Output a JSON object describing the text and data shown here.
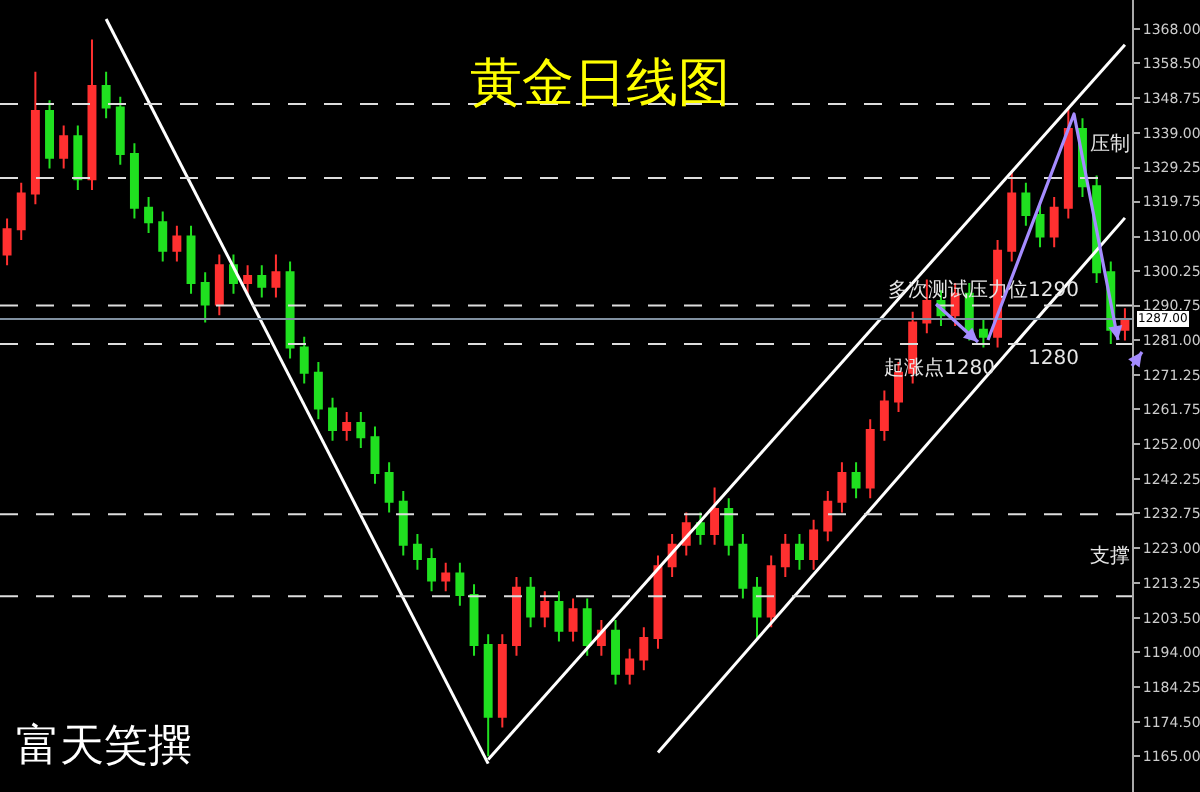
{
  "chart_data": {
    "type": "candlestick",
    "title": "黄金日线图",
    "categories": [
      null,
      null,
      null,
      null,
      null,
      null,
      null,
      null,
      null,
      null,
      null,
      null,
      null,
      null,
      null,
      null,
      null,
      null,
      null,
      null,
      null,
      null,
      null,
      null,
      null,
      null,
      null,
      null,
      null,
      null,
      null,
      null,
      null,
      null,
      null,
      null,
      null,
      null,
      null,
      null,
      null,
      null,
      null,
      null,
      null,
      null,
      null,
      null,
      null,
      null,
      null,
      null,
      null,
      null,
      null,
      null,
      null,
      null,
      null,
      null,
      null,
      null,
      null,
      null,
      null,
      null,
      null,
      null,
      null,
      null,
      null,
      null,
      null,
      null,
      null,
      null,
      null,
      null,
      null,
      null
    ],
    "ohlc": [
      [
        1305,
        1315,
        1302,
        1312
      ],
      [
        1312,
        1325,
        1309,
        1322
      ],
      [
        1322,
        1356,
        1319,
        1345
      ],
      [
        1345,
        1348,
        1329,
        1332
      ],
      [
        1332,
        1341,
        1329,
        1338
      ],
      [
        1338,
        1341,
        1323,
        1326
      ],
      [
        1326,
        1365,
        1323,
        1352
      ],
      [
        1352,
        1356,
        1343,
        1346
      ],
      [
        1346,
        1349,
        1330,
        1333
      ],
      [
        1333,
        1336,
        1315,
        1318
      ],
      [
        1318,
        1321,
        1311,
        1314
      ],
      [
        1314,
        1317,
        1303,
        1306
      ],
      [
        1306,
        1313,
        1303,
        1310
      ],
      [
        1310,
        1313,
        1294,
        1297
      ],
      [
        1297,
        1300,
        1286,
        1291
      ],
      [
        1291,
        1305,
        1288,
        1302
      ],
      [
        1302,
        1305,
        1294,
        1297
      ],
      [
        1297,
        1302,
        1294,
        1299
      ],
      [
        1299,
        1302,
        1293,
        1296
      ],
      [
        1296,
        1305,
        1293,
        1300
      ],
      [
        1300,
        1303,
        1276,
        1279
      ],
      [
        1279,
        1282,
        1269,
        1272
      ],
      [
        1272,
        1275,
        1259,
        1262
      ],
      [
        1262,
        1265,
        1253,
        1256
      ],
      [
        1256,
        1261,
        1253,
        1258
      ],
      [
        1258,
        1261,
        1251,
        1254
      ],
      [
        1254,
        1257,
        1241,
        1244
      ],
      [
        1244,
        1247,
        1233,
        1236
      ],
      [
        1236,
        1239,
        1221,
        1224
      ],
      [
        1224,
        1227,
        1217,
        1220
      ],
      [
        1220,
        1223,
        1211,
        1214
      ],
      [
        1214,
        1219,
        1211,
        1216
      ],
      [
        1216,
        1219,
        1207,
        1210
      ],
      [
        1210,
        1213,
        1193,
        1196
      ],
      [
        1196,
        1199,
        1165,
        1176
      ],
      [
        1176,
        1199,
        1173,
        1196
      ],
      [
        1196,
        1215,
        1193,
        1212
      ],
      [
        1212,
        1215,
        1201,
        1204
      ],
      [
        1204,
        1211,
        1201,
        1208
      ],
      [
        1208,
        1211,
        1197,
        1200
      ],
      [
        1200,
        1209,
        1197,
        1206
      ],
      [
        1206,
        1209,
        1193,
        1196
      ],
      [
        1196,
        1203,
        1193,
        1200
      ],
      [
        1200,
        1203,
        1185,
        1188
      ],
      [
        1188,
        1195,
        1185,
        1192
      ],
      [
        1192,
        1201,
        1189,
        1198
      ],
      [
        1198,
        1221,
        1195,
        1218
      ],
      [
        1218,
        1227,
        1215,
        1224
      ],
      [
        1224,
        1233,
        1221,
        1230
      ],
      [
        1230,
        1233,
        1224,
        1227
      ],
      [
        1227,
        1240,
        1224,
        1234
      ],
      [
        1234,
        1237,
        1221,
        1224
      ],
      [
        1224,
        1227,
        1209,
        1212
      ],
      [
        1212,
        1215,
        1198,
        1204
      ],
      [
        1204,
        1221,
        1201,
        1218
      ],
      [
        1218,
        1227,
        1215,
        1224
      ],
      [
        1224,
        1227,
        1217,
        1220
      ],
      [
        1220,
        1231,
        1217,
        1228
      ],
      [
        1228,
        1239,
        1225,
        1236
      ],
      [
        1236,
        1247,
        1233,
        1244
      ],
      [
        1244,
        1247,
        1237,
        1240
      ],
      [
        1240,
        1259,
        1237,
        1256
      ],
      [
        1256,
        1267,
        1253,
        1264
      ],
      [
        1264,
        1275,
        1261,
        1272
      ],
      [
        1272,
        1289,
        1269,
        1286
      ],
      [
        1286,
        1298,
        1283,
        1292
      ],
      [
        1292,
        1295,
        1285,
        1288
      ],
      [
        1288,
        1297,
        1285,
        1294
      ],
      [
        1294,
        1297,
        1281,
        1284
      ],
      [
        1284,
        1287,
        1279,
        1282
      ],
      [
        1282,
        1309,
        1279,
        1306
      ],
      [
        1306,
        1328,
        1303,
        1322
      ],
      [
        1322,
        1325,
        1313,
        1316
      ],
      [
        1316,
        1319,
        1307,
        1310
      ],
      [
        1310,
        1321,
        1307,
        1318
      ],
      [
        1318,
        1346,
        1315,
        1340
      ],
      [
        1340,
        1343,
        1321,
        1324
      ],
      [
        1324,
        1327,
        1297,
        1300
      ],
      [
        1300,
        1303,
        1280,
        1284
      ],
      [
        1284,
        1290,
        1281,
        1287
      ]
    ],
    "colors": [
      "#ff3030",
      "#ff3030",
      "#ff3030",
      "#20e020",
      "#ff3030",
      "#20e020",
      "#ff3030",
      "#20e020",
      "#20e020",
      "#20e020",
      "#20e020",
      "#20e020",
      "#ff3030",
      "#20e020",
      "#20e020",
      "#ff3030",
      "#20e020",
      "#ff3030",
      "#20e020",
      "#ff3030",
      "#20e020",
      "#20e020",
      "#20e020",
      "#20e020",
      "#ff3030",
      "#20e020",
      "#20e020",
      "#20e020",
      "#20e020",
      "#20e020",
      "#20e020",
      "#ff3030",
      "#20e020",
      "#20e020",
      "#20e020",
      "#ff3030",
      "#ff3030",
      "#20e020",
      "#ff3030",
      "#20e020",
      "#ff3030",
      "#20e020",
      "#ff3030",
      "#20e020",
      "#ff3030",
      "#ff3030",
      "#ff3030",
      "#ff3030",
      "#ff3030",
      "#20e020",
      "#ff3030",
      "#20e020",
      "#20e020",
      "#20e020",
      "#ff3030",
      "#ff3030",
      "#20e020",
      "#ff3030",
      "#ff3030",
      "#ff3030",
      "#20e020",
      "#ff3030",
      "#ff3030",
      "#ff3030",
      "#ff3030",
      "#ff3030",
      "#20e020",
      "#ff3030",
      "#20e020",
      "#20e020",
      "#ff3030",
      "#ff3030",
      "#20e020",
      "#20e020",
      "#ff3030",
      "#ff3030",
      "#20e020",
      "#20e020",
      "#20e020",
      "#ff3030"
    ],
    "series": [
      {
        "type": "line",
        "color": "#ffffff",
        "values": [
          null,
          null,
          null,
          null,
          null,
          null,
          null,
          1370.7,
          null,
          null,
          null,
          null,
          null,
          null,
          null,
          null,
          null,
          null,
          null,
          null,
          null,
          null,
          null,
          null,
          null,
          null,
          null,
          null,
          null,
          null,
          null,
          null,
          null,
          null,
          1162.9,
          null,
          null,
          null,
          null,
          null,
          null,
          null,
          null,
          null,
          null,
          null,
          null,
          null,
          null,
          null,
          null,
          null,
          null,
          null,
          null,
          null,
          null,
          null,
          null,
          null,
          null,
          null,
          null,
          null,
          null,
          null,
          null,
          null,
          null,
          null,
          null,
          null,
          null,
          null,
          null,
          null,
          null,
          null,
          null,
          null
        ]
      },
      {
        "type": "line",
        "color": "#ffffff",
        "values": [
          null,
          null,
          null,
          null,
          null,
          null,
          null,
          null,
          null,
          null,
          null,
          null,
          null,
          null,
          null,
          null,
          null,
          null,
          null,
          null,
          null,
          null,
          null,
          null,
          null,
          null,
          null,
          null,
          null,
          null,
          null,
          null,
          null,
          null,
          1164.1,
          null,
          null,
          null,
          null,
          null,
          null,
          null,
          null,
          null,
          null,
          null,
          null,
          null,
          null,
          null,
          null,
          null,
          null,
          null,
          null,
          null,
          null,
          null,
          null,
          null,
          null,
          null,
          null,
          null,
          null,
          null,
          null,
          null,
          null,
          null,
          null,
          null,
          null,
          null,
          null,
          null,
          null,
          null,
          null,
          1363.5
        ]
      },
      {
        "type": "line",
        "color": "#ffffff",
        "values": [
          null,
          null,
          null,
          null,
          null,
          null,
          null,
          null,
          null,
          null,
          null,
          null,
          null,
          null,
          null,
          null,
          null,
          null,
          null,
          null,
          null,
          null,
          null,
          null,
          null,
          null,
          null,
          null,
          null,
          null,
          null,
          null,
          null,
          null,
          null,
          null,
          null,
          null,
          null,
          null,
          null,
          null,
          null,
          null,
          null,
          null,
          1166.0,
          null,
          null,
          null,
          null,
          null,
          null,
          null,
          null,
          null,
          null,
          null,
          null,
          null,
          null,
          null,
          null,
          null,
          null,
          null,
          null,
          null,
          null,
          null,
          null,
          null,
          null,
          null,
          null,
          null,
          null,
          null,
          null,
          1315.2
        ]
      }
    ],
    "ref_lines": [
      {
        "axis": "y",
        "value": 1347,
        "color": "#dddddd",
        "line_style": "dashed"
      },
      {
        "axis": "y",
        "value": 1326.3,
        "color": "#dddddd",
        "line_style": "dashed"
      },
      {
        "axis": "y",
        "value": 1290.75,
        "label": "多次测试压力位1290",
        "color": "#dddddd",
        "line_style": "dashed"
      },
      {
        "axis": "y",
        "value": 1287,
        "label": "1287.00",
        "color": "#8090a0",
        "line_style": "solid"
      },
      {
        "axis": "y",
        "value": 1280,
        "label": "1280",
        "color": "#dddddd",
        "line_style": "dashed"
      },
      {
        "axis": "y",
        "value": 1232.5,
        "color": "#dddddd",
        "line_style": "dashed"
      },
      {
        "axis": "y",
        "value": 1209.6,
        "color": "#dddddd",
        "line_style": "dashed"
      }
    ],
    "annotations": [
      "压制",
      "支撑",
      "起涨点1280",
      "富天笑撰"
    ],
    "ylim": [
      1155,
      1376
    ],
    "yticks": [
      {
        "value": 1368,
        "label": "1368.00"
      },
      {
        "value": 1358.5,
        "label": "1358.50"
      },
      {
        "value": 1348.75,
        "label": "1348.75"
      },
      {
        "value": 1339,
        "label": "1339.00"
      },
      {
        "value": 1329.25,
        "label": "1329.25"
      },
      {
        "value": 1319.75,
        "label": "1319.75"
      },
      {
        "value": 1310,
        "label": "1310.00"
      },
      {
        "value": 1300.25,
        "label": "1300.25"
      },
      {
        "value": 1290.75,
        "label": "1290.75"
      },
      {
        "value": 1281,
        "label": "1281.00"
      },
      {
        "value": 1271.25,
        "label": "1271.25"
      },
      {
        "value": 1261.75,
        "label": "1261.75"
      },
      {
        "value": 1252,
        "label": "1252.00"
      },
      {
        "value": 1242.25,
        "label": "1242.25"
      },
      {
        "value": 1232.75,
        "label": "1232.75"
      },
      {
        "value": 1223,
        "label": "1223.00"
      },
      {
        "value": 1213.25,
        "label": "1213.25"
      },
      {
        "value": 1203.5,
        "label": "1203.50"
      },
      {
        "value": 1194,
        "label": "1194.00"
      },
      {
        "value": 1184.25,
        "label": "1184.25"
      },
      {
        "value": 1174.5,
        "label": "1174.50"
      },
      {
        "value": 1165,
        "label": "1165.00"
      }
    ],
    "tick_labels": "y"
  }
}
